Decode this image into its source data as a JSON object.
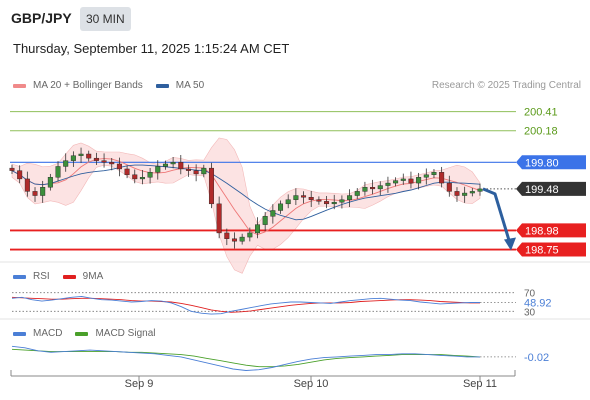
{
  "header": {
    "symbol": "GBP/JPY",
    "timeframe": "30 MIN",
    "datetime": "Thursday, September 11, 2025 1:15:24 AM CET"
  },
  "price_panel": {
    "legend": [
      {
        "label": "MA 20 + Bollinger Bands",
        "color": "#f08a8a"
      },
      {
        "label": "MA 50",
        "color": "#2f5f9e"
      }
    ],
    "copyright": "Research © 2025 Trading Central"
  },
  "rsi_panel": {
    "legend": [
      {
        "label": "RSI",
        "color": "#4b7fd6"
      },
      {
        "label": "9MA",
        "color": "#e02020"
      }
    ]
  },
  "macd_panel": {
    "legend": [
      {
        "label": "MACD",
        "color": "#4b7fd6"
      },
      {
        "label": "MACD Signal",
        "color": "#4aa02a"
      }
    ]
  },
  "chart_data": [
    {
      "type": "candlestick",
      "x_ticks": [
        "Sep 9",
        "Sep 10",
        "Sep 11"
      ],
      "y_range": [
        198.6,
        200.55
      ],
      "levels": [
        {
          "value": 200.41,
          "label": "200.41",
          "style": "green-line",
          "color": "#8fbf5a"
        },
        {
          "value": 200.18,
          "label": "200.18",
          "style": "green-line",
          "color": "#8fbf5a"
        },
        {
          "value": 199.8,
          "label": "199.80",
          "style": "pivot",
          "color": "#3b73e8"
        },
        {
          "value": 199.48,
          "label": "199.48",
          "style": "last-price",
          "color": "#333333"
        },
        {
          "value": 198.98,
          "label": "198.98",
          "style": "support",
          "color": "#e82020"
        },
        {
          "value": 198.75,
          "label": "198.75",
          "style": "support",
          "color": "#e82020"
        }
      ],
      "close_series": [
        199.7,
        199.6,
        199.45,
        199.4,
        199.5,
        199.62,
        199.75,
        199.82,
        199.88,
        199.9,
        199.85,
        199.82,
        199.8,
        199.78,
        199.72,
        199.65,
        199.6,
        199.62,
        199.68,
        199.75,
        199.78,
        199.8,
        199.72,
        199.7,
        199.66,
        199.73,
        199.3,
        198.95,
        198.88,
        198.85,
        198.9,
        198.95,
        199.05,
        199.15,
        199.22,
        199.3,
        199.35,
        199.4,
        199.38,
        199.35,
        199.33,
        199.3,
        199.32,
        199.35,
        199.4,
        199.45,
        199.5,
        199.48,
        199.52,
        199.55,
        199.58,
        199.6,
        199.55,
        199.62,
        199.65,
        199.68,
        199.55,
        199.45,
        199.4,
        199.43,
        199.45,
        199.48
      ]
    },
    {
      "type": "line",
      "name": "RSI",
      "y_ticks": [
        70,
        30
      ],
      "last_value": 48.92,
      "last_label": "48.92",
      "series": [
        {
          "name": "RSI",
          "values": [
            58,
            60,
            55,
            52,
            54,
            57,
            60,
            62,
            58,
            55,
            54,
            52,
            50,
            51,
            53,
            52,
            48,
            40,
            30,
            26,
            24,
            25,
            30,
            34,
            38,
            42,
            46,
            48,
            50,
            50,
            49,
            48,
            47,
            50,
            53,
            55,
            57,
            58,
            56,
            54,
            53,
            50,
            48,
            46,
            47,
            48,
            49,
            48.92
          ]
        },
        {
          "name": "9MA",
          "values": [
            60,
            59,
            58,
            57,
            56,
            56,
            57,
            58,
            58,
            57,
            56,
            55,
            53,
            52,
            52,
            51,
            50,
            47,
            43,
            38,
            33,
            30,
            28,
            29,
            31,
            34,
            37,
            40,
            43,
            45,
            47,
            48,
            48,
            48,
            49,
            51,
            52,
            53,
            54,
            55,
            55,
            54,
            53,
            51,
            50,
            49,
            48,
            48
          ]
        }
      ]
    },
    {
      "type": "line",
      "name": "MACD",
      "last_value": -0.02,
      "last_label": "-0.02",
      "series": [
        {
          "name": "MACD",
          "values": [
            0.12,
            0.1,
            0.06,
            0.04,
            0.05,
            0.06,
            0.07,
            0.06,
            0.05,
            0.04,
            0.03,
            0.02,
            0.0,
            -0.02,
            -0.06,
            -0.1,
            -0.14,
            -0.18,
            -0.2,
            -0.19,
            -0.16,
            -0.12,
            -0.08,
            -0.05,
            -0.03,
            -0.02,
            -0.01,
            0.0,
            0.01,
            0.01,
            0.02,
            0.02,
            0.01,
            0.0,
            -0.01,
            -0.02,
            -0.02
          ]
        },
        {
          "name": "MACD Signal",
          "values": [
            0.08,
            0.07,
            0.06,
            0.05,
            0.05,
            0.05,
            0.05,
            0.05,
            0.05,
            0.04,
            0.04,
            0.03,
            0.02,
            0.01,
            -0.01,
            -0.04,
            -0.07,
            -0.1,
            -0.13,
            -0.15,
            -0.15,
            -0.14,
            -0.12,
            -0.09,
            -0.06,
            -0.04,
            -0.03,
            -0.02,
            -0.01,
            0.0,
            0.01,
            0.01,
            0.01,
            0.01,
            0.0,
            -0.01,
            -0.02
          ]
        }
      ]
    }
  ]
}
